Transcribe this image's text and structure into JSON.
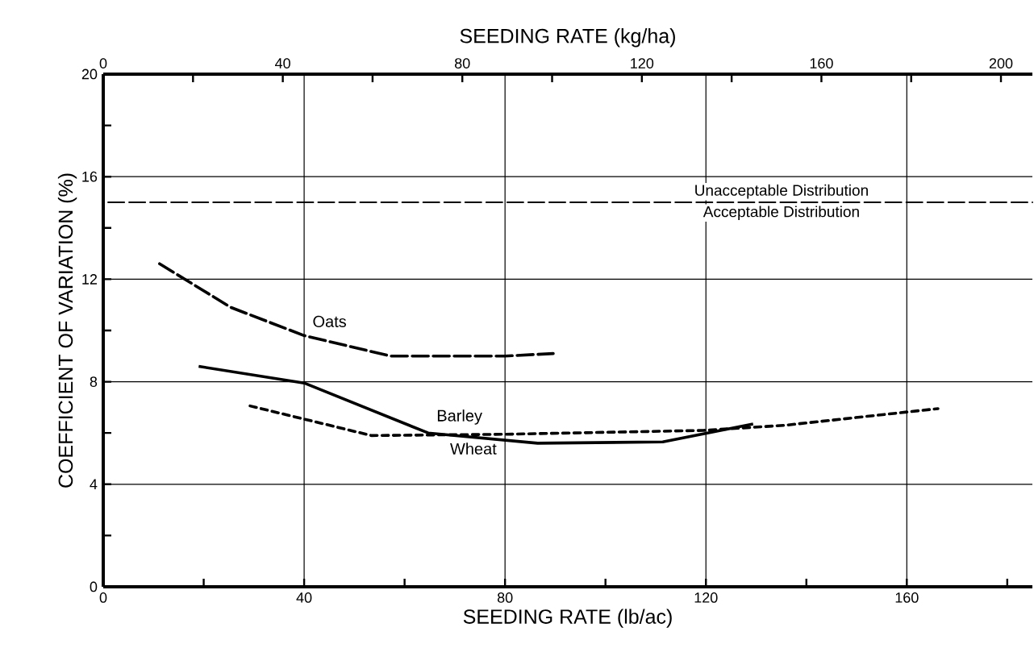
{
  "chart_data": {
    "type": "line",
    "xlabel": "SEEDING RATE (lb/ac)",
    "x2label": "SEEDING RATE (kg/ha)",
    "ylabel": "COEFFICIENT OF VARIATION (%)",
    "xlim": [
      0,
      185
    ],
    "ylim": [
      0,
      20
    ],
    "xticks": [
      0,
      {
        "value": 20,
        "label": null
      },
      40,
      {
        "value": 60,
        "label": null
      },
      80,
      {
        "value": 100,
        "label": null
      },
      120,
      {
        "value": 140,
        "label": null
      },
      160,
      {
        "value": 180,
        "label": null
      }
    ],
    "x2lim": [
      0,
      207
    ],
    "x2ticks": [
      0,
      {
        "value": 20,
        "label": null
      },
      40,
      {
        "value": 60,
        "label": null
      },
      80,
      {
        "value": 100,
        "label": null
      },
      120,
      {
        "value": 140,
        "label": null
      },
      160,
      {
        "value": 180,
        "label": null
      },
      200
    ],
    "yticks": [
      0,
      {
        "value": 2,
        "label": null
      },
      4,
      {
        "value": 6,
        "label": null
      },
      8,
      {
        "value": 10,
        "label": null
      },
      12,
      {
        "value": 14,
        "label": null
      },
      16,
      {
        "value": 18,
        "label": null
      },
      20
    ],
    "grid": true,
    "marker": "none",
    "ref_lines": [
      {
        "axis": "y",
        "value": 15,
        "line_style": "dashed"
      }
    ],
    "annotations": [
      "Unacceptable Distribution",
      "Acceptable Distribution"
    ],
    "series": [
      {
        "name": "Oats",
        "color": "#000000",
        "line_style": "dashed",
        "x": [
          10.4,
          25.4,
          40,
          57.2,
          80,
          89.6
        ],
        "values": [
          12.7,
          10.9,
          9.8,
          9.0,
          9.0,
          9.1
        ]
      },
      {
        "name": "Barley",
        "color": "#000000",
        "line_style": "solid",
        "x": [
          19,
          40,
          64.7,
          86.5,
          111.4,
          129.4
        ],
        "values": [
          8.6,
          7.95,
          6.0,
          5.6,
          5.65,
          6.35
        ]
      },
      {
        "name": "Wheat",
        "color": "#000000",
        "line_style": "dotted",
        "x": [
          28.3,
          53.4,
          80,
          119.5,
          135.7,
          166.2
        ],
        "values": [
          7.1,
          5.9,
          5.95,
          6.1,
          6.3,
          6.95
        ]
      }
    ]
  }
}
